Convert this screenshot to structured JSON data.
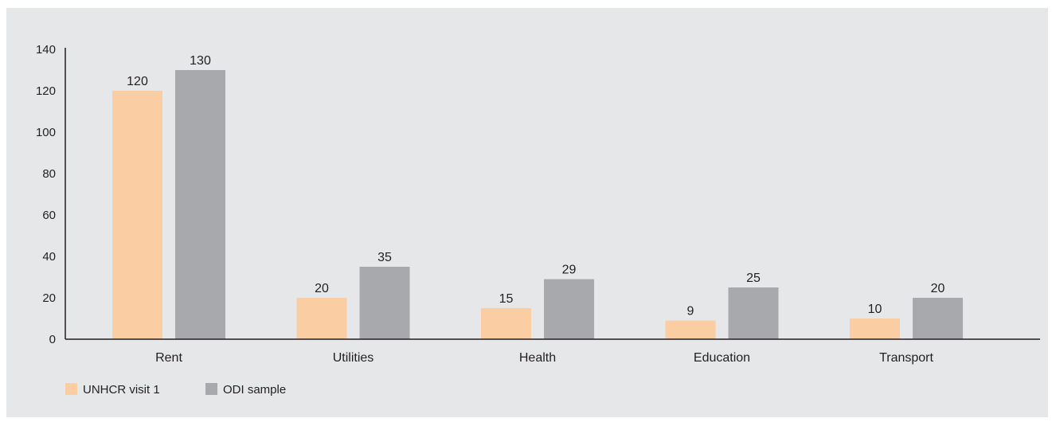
{
  "chart_data": {
    "type": "bar",
    "categories": [
      "Rent",
      "Utilities",
      "Health",
      "Education",
      "Transport"
    ],
    "series": [
      {
        "name": "UNHCR visit 1",
        "color": "#fbcda2",
        "values": [
          120,
          20,
          15,
          9,
          10
        ]
      },
      {
        "name": "ODI sample",
        "color": "#a7a9ac",
        "values": [
          130,
          35,
          29,
          25,
          20
        ]
      }
    ],
    "ylim": [
      0,
      140
    ],
    "yticks": [
      0,
      20,
      40,
      60,
      80,
      100,
      120,
      140
    ],
    "grid": false,
    "legend_position": "bottom-left",
    "xlabel": "",
    "ylabel": ""
  }
}
